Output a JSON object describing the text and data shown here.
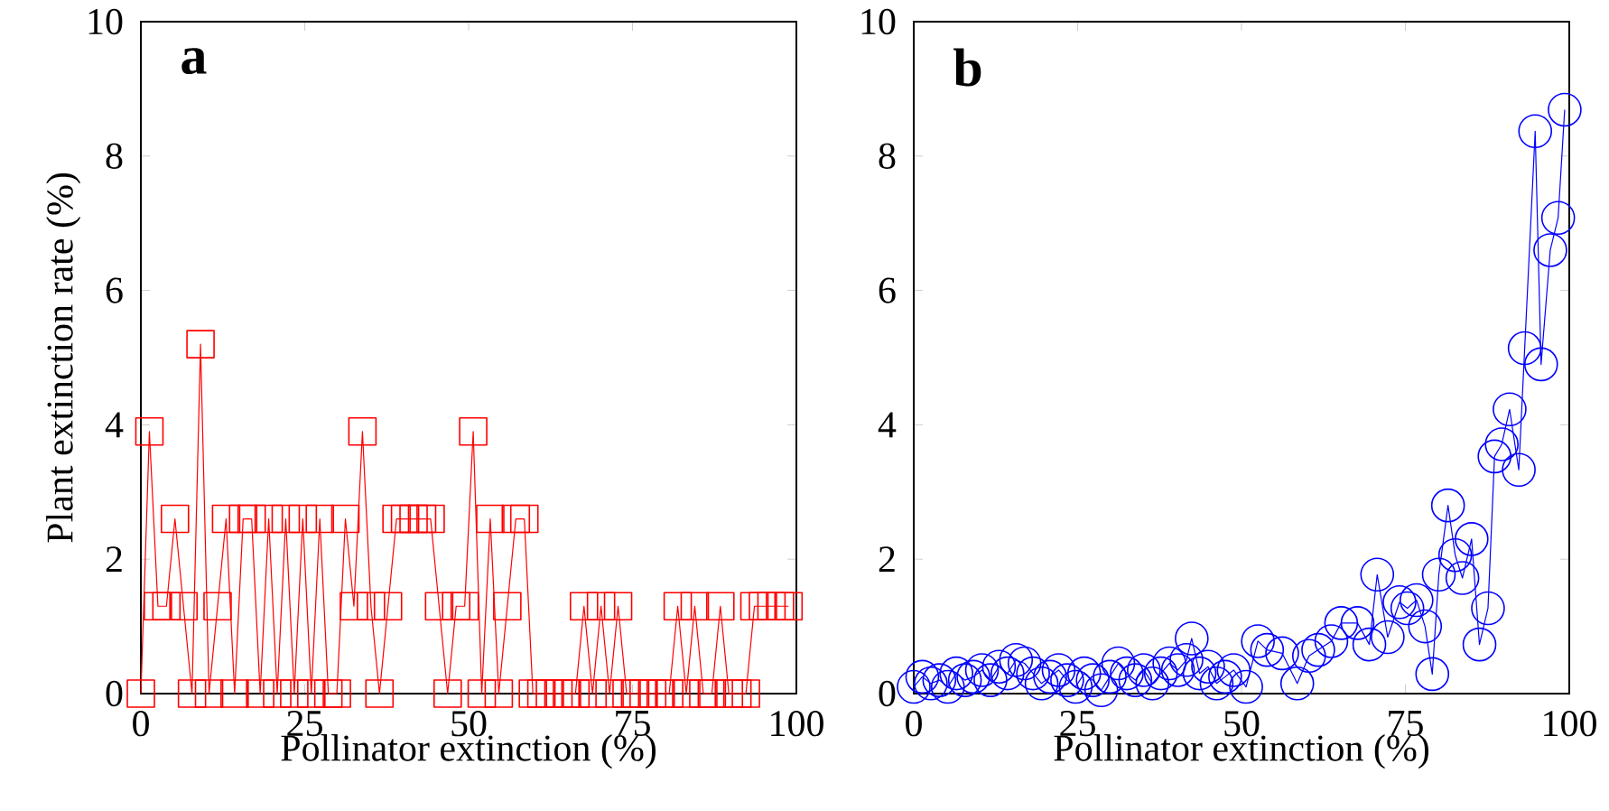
{
  "chart_data": [
    {
      "type": "line",
      "xlabel": "Pollinator extinction (%)",
      "ylabel": "Plant extinction rate (%)",
      "annotations": [
        "a"
      ],
      "marker": "square",
      "xlim": [
        0,
        100
      ],
      "ylim": [
        0,
        10
      ],
      "xticks": [
        0,
        25,
        50,
        75,
        100
      ],
      "yticks": [
        0,
        2,
        4,
        6,
        8,
        10
      ],
      "series": [
        {
          "color": "#ff0000",
          "x": [
            0,
            1.3,
            2.6,
            3.9,
            5.2,
            6.5,
            7.8,
            9.1,
            10.4,
            11.7,
            13,
            14.3,
            15.6,
            16.9,
            18.2,
            19.5,
            20.8,
            22.1,
            23.4,
            24.7,
            26,
            27.3,
            28.6,
            29.9,
            31.2,
            32.5,
            33.8,
            35.1,
            36.4,
            37.7,
            39,
            40.3,
            41.6,
            42.9,
            44.2,
            45.5,
            46.8,
            48.1,
            49.4,
            50.7,
            52,
            53.3,
            54.6,
            55.9,
            57.2,
            58.5,
            59.8,
            61.1,
            62.4,
            63.7,
            65,
            66.3,
            67.6,
            68.9,
            70.2,
            71.5,
            72.8,
            74.1,
            75.4,
            76.7,
            78,
            79.3,
            80.6,
            81.9,
            83.2,
            84.5,
            85.8,
            87.1,
            88.4,
            89.7,
            91,
            92.3,
            93.6,
            94.9,
            96.2,
            97.5,
            98.8
          ],
          "values": [
            0,
            3.9,
            1.3,
            1.3,
            2.6,
            1.3,
            0,
            5.2,
            0,
            1.3,
            2.6,
            0,
            2.6,
            2.6,
            0,
            2.6,
            0,
            2.6,
            0,
            2.6,
            0,
            2.6,
            0,
            0,
            2.6,
            1.3,
            3.9,
            1.3,
            0,
            1.3,
            2.6,
            2.6,
            2.6,
            2.6,
            2.6,
            1.3,
            0,
            1.3,
            1.3,
            3.9,
            0,
            2.6,
            0,
            1.3,
            2.6,
            2.6,
            0,
            0,
            0,
            0,
            0,
            0,
            1.3,
            0,
            1.3,
            0,
            1.3,
            0,
            0,
            0,
            0,
            0,
            0,
            1.3,
            0,
            1.3,
            0,
            0,
            1.3,
            0,
            0,
            0,
            1.3,
            1.3,
            1.3,
            1.3,
            1.3
          ]
        }
      ]
    },
    {
      "type": "line",
      "xlabel": "Pollinator extinction (%)",
      "annotations": [
        "b"
      ],
      "marker": "circle",
      "xlim": [
        0,
        100
      ],
      "ylim": [
        0,
        10
      ],
      "xticks": [
        0,
        25,
        50,
        75,
        100
      ],
      "yticks": [
        0,
        2,
        4,
        6,
        8,
        10
      ],
      "series": [
        {
          "color": "#0000ff",
          "x": [
            0,
            1.3,
            2.6,
            3.9,
            5.2,
            6.5,
            7.8,
            9.1,
            10.4,
            11.7,
            13,
            14.3,
            15.6,
            16.9,
            18.2,
            19.5,
            20.8,
            22.1,
            23.4,
            24.7,
            26,
            27.3,
            28.6,
            29.9,
            31.2,
            32.5,
            33.8,
            35.1,
            36.4,
            37.7,
            39,
            40.3,
            41.6,
            42.4,
            43.6,
            44.9,
            46.2,
            47.5,
            48.8,
            50.7,
            52.5,
            53.9,
            56.2,
            58.5,
            60.3,
            61.7,
            63.7,
            65.2,
            67.7,
            69.5,
            70.7,
            72.3,
            74.1,
            75.3,
            76.7,
            78,
            79.1,
            80.1,
            81.5,
            82.6,
            83.7,
            85.1,
            86.3,
            87.6,
            88.6,
            89.7,
            90.9,
            92.3,
            93.2,
            94.8,
            95.7,
            97.1,
            98.3,
            99.3
          ],
          "values": [
            0.1,
            0.25,
            0.15,
            0.2,
            0.1,
            0.3,
            0.2,
            0.25,
            0.35,
            0.2,
            0.4,
            0.3,
            0.5,
            0.45,
            0.3,
            0.15,
            0.25,
            0.35,
            0.2,
            0.1,
            0.3,
            0.2,
            0.05,
            0.25,
            0.45,
            0.3,
            0.2,
            0.35,
            0.15,
            0.3,
            0.45,
            0.35,
            0.5,
            0.82,
            0.3,
            0.4,
            0.15,
            0.25,
            0.35,
            0.1,
            0.78,
            0.65,
            0.6,
            0.15,
            0.56,
            0.65,
            0.78,
            1.05,
            1.05,
            0.73,
            1.77,
            0.84,
            1.36,
            1.27,
            1.39,
            1.0,
            0.29,
            1.77,
            2.8,
            2.06,
            1.72,
            2.3,
            0.73,
            1.27,
            3.53,
            3.71,
            4.23,
            3.33,
            5.14,
            8.37,
            4.9,
            6.6,
            7.08,
            8.69
          ]
        }
      ]
    }
  ]
}
